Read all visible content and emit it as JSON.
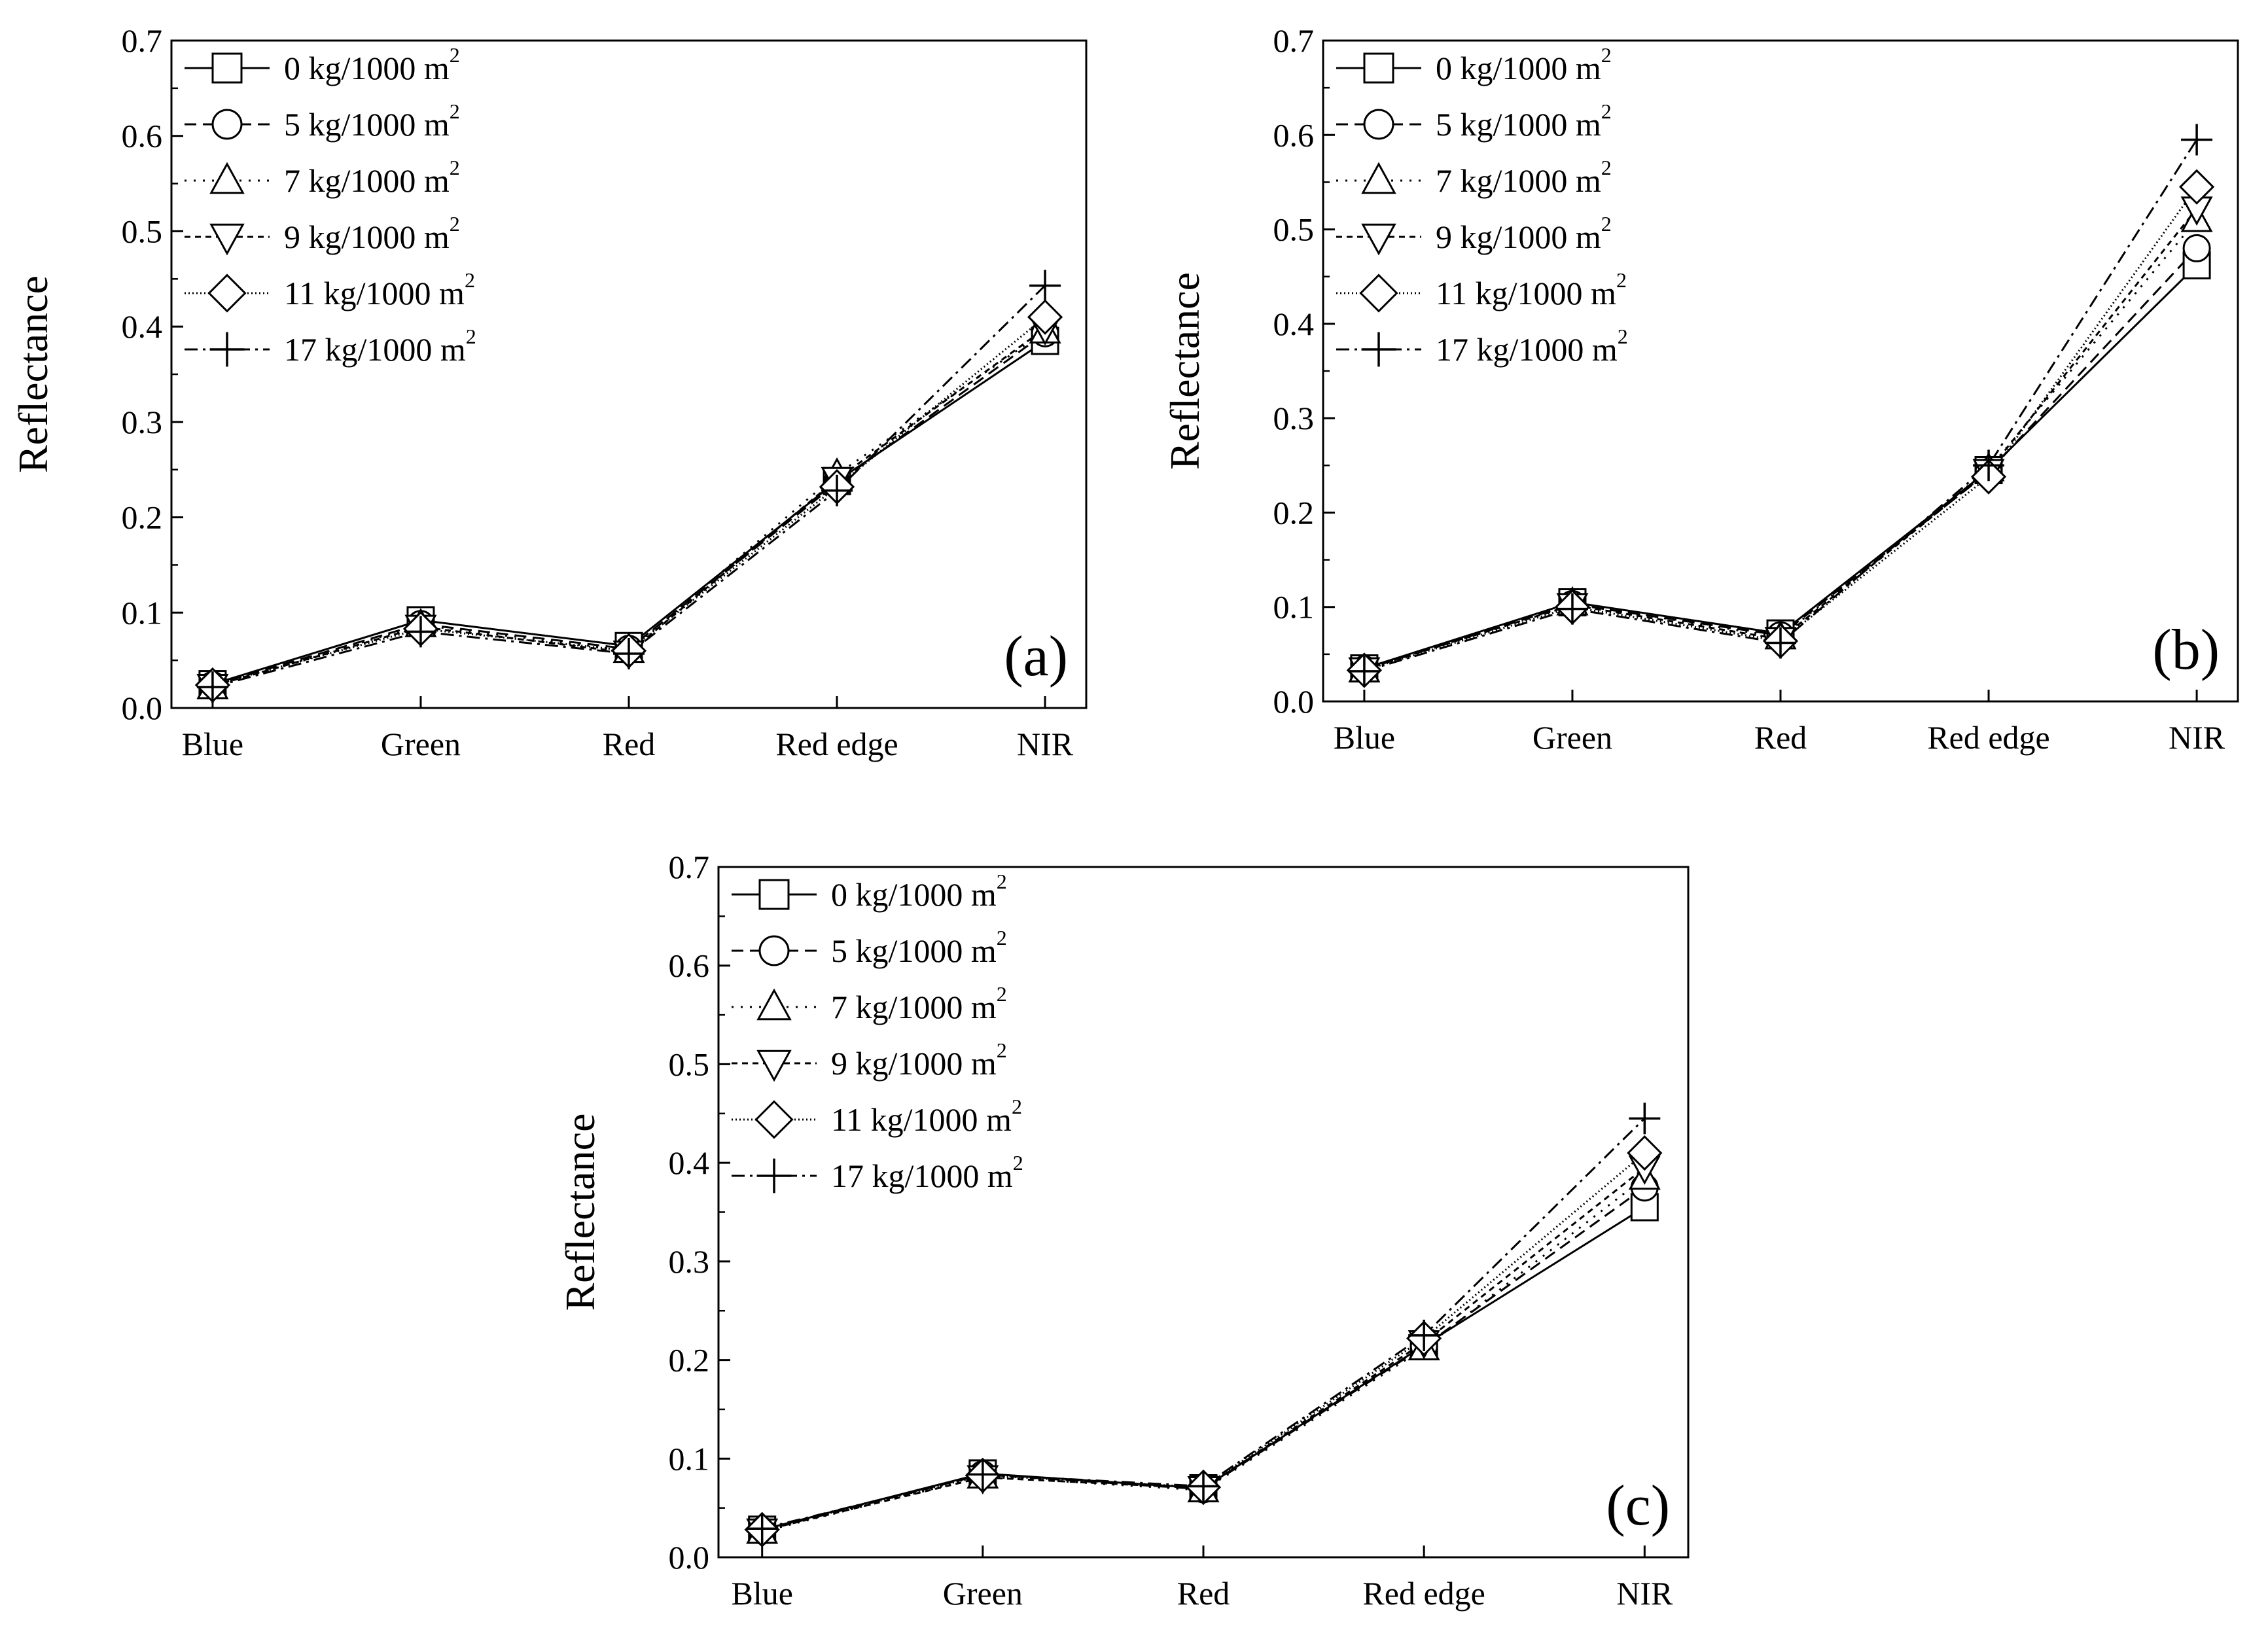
{
  "chart_data": [
    {
      "type": "line",
      "panel_label": "(a)",
      "ylabel": "Reflectance",
      "xlabel": "",
      "categories": [
        "Blue",
        "Green",
        "Red",
        "Red edge",
        "NIR"
      ],
      "ylim": [
        0.0,
        0.7
      ],
      "yticks": [
        "0.0",
        "0.1",
        "0.2",
        "0.3",
        "0.4",
        "0.5",
        "0.6",
        "0.7"
      ],
      "legend_position": "top-left",
      "series": [
        {
          "name": "0 kg/1000 m",
          "sup": "2",
          "marker": "square",
          "dash": "solid",
          "values": [
            0.025,
            0.092,
            0.065,
            0.238,
            0.385
          ]
        },
        {
          "name": "5 kg/1000 m",
          "sup": "2",
          "marker": "circle",
          "dash": "dashed",
          "values": [
            0.024,
            0.088,
            0.062,
            0.236,
            0.393
          ]
        },
        {
          "name": "7 kg/1000 m",
          "sup": "2",
          "marker": "triangle-up",
          "dash": "dotted",
          "values": [
            0.022,
            0.087,
            0.06,
            0.245,
            0.395
          ]
        },
        {
          "name": "9 kg/1000 m",
          "sup": "2",
          "marker": "triangle-down",
          "dash": "short-dash",
          "values": [
            0.023,
            0.085,
            0.058,
            0.24,
            0.398
          ]
        },
        {
          "name": "11 kg/1000 m",
          "sup": "2",
          "marker": "diamond",
          "dash": "fine-dot",
          "values": [
            0.024,
            0.083,
            0.06,
            0.232,
            0.41
          ]
        },
        {
          "name": "17 kg/1000 m",
          "sup": "2",
          "marker": "plus",
          "dash": "dash-dot",
          "values": [
            0.022,
            0.08,
            0.057,
            0.228,
            0.443
          ]
        }
      ]
    },
    {
      "type": "line",
      "panel_label": "(b)",
      "ylabel": "Reflectance",
      "xlabel": "",
      "categories": [
        "Blue",
        "Green",
        "Red",
        "Red edge",
        "NIR"
      ],
      "ylim": [
        0.0,
        0.7
      ],
      "yticks": [
        "0.0",
        "0.1",
        "0.2",
        "0.3",
        "0.4",
        "0.5",
        "0.6",
        "0.7"
      ],
      "legend_position": "top-left",
      "series": [
        {
          "name": "0 kg/1000 m",
          "sup": "2",
          "marker": "square",
          "dash": "solid",
          "values": [
            0.035,
            0.105,
            0.072,
            0.245,
            0.462
          ]
        },
        {
          "name": "5 kg/1000 m",
          "sup": "2",
          "marker": "circle",
          "dash": "dashed",
          "values": [
            0.034,
            0.103,
            0.07,
            0.243,
            0.48
          ]
        },
        {
          "name": "7 kg/1000 m",
          "sup": "2",
          "marker": "triangle-up",
          "dash": "dotted",
          "values": [
            0.033,
            0.104,
            0.068,
            0.246,
            0.51
          ]
        },
        {
          "name": "9 kg/1000 m",
          "sup": "2",
          "marker": "triangle-down",
          "dash": "short-dash",
          "values": [
            0.034,
            0.102,
            0.066,
            0.244,
            0.522
          ]
        },
        {
          "name": "11 kg/1000 m",
          "sup": "2",
          "marker": "diamond",
          "dash": "fine-dot",
          "values": [
            0.033,
            0.1,
            0.064,
            0.238,
            0.545
          ]
        },
        {
          "name": "17 kg/1000 m",
          "sup": "2",
          "marker": "plus",
          "dash": "dash-dot",
          "values": [
            0.032,
            0.098,
            0.062,
            0.25,
            0.595
          ]
        }
      ]
    },
    {
      "type": "line",
      "panel_label": "(c)",
      "ylabel": "Reflectance",
      "xlabel": "",
      "categories": [
        "Blue",
        "Green",
        "Red",
        "Red edge",
        "NIR"
      ],
      "ylim": [
        0.0,
        0.7
      ],
      "yticks": [
        "0.0",
        "0.1",
        "0.2",
        "0.3",
        "0.4",
        "0.5",
        "0.6",
        "0.7"
      ],
      "legend_position": "top-left",
      "series": [
        {
          "name": "0 kg/1000 m",
          "sup": "2",
          "marker": "square",
          "dash": "solid",
          "values": [
            0.028,
            0.085,
            0.07,
            0.215,
            0.355
          ]
        },
        {
          "name": "5 kg/1000 m",
          "sup": "2",
          "marker": "circle",
          "dash": "dashed",
          "values": [
            0.027,
            0.084,
            0.069,
            0.214,
            0.375
          ]
        },
        {
          "name": "7 kg/1000 m",
          "sup": "2",
          "marker": "triangle-up",
          "dash": "dotted",
          "values": [
            0.026,
            0.082,
            0.068,
            0.212,
            0.385
          ]
        },
        {
          "name": "9 kg/1000 m",
          "sup": "2",
          "marker": "triangle-down",
          "dash": "short-dash",
          "values": [
            0.027,
            0.081,
            0.07,
            0.218,
            0.395
          ]
        },
        {
          "name": "11 kg/1000 m",
          "sup": "2",
          "marker": "diamond",
          "dash": "fine-dot",
          "values": [
            0.028,
            0.083,
            0.071,
            0.222,
            0.41
          ]
        },
        {
          "name": "17 kg/1000 m",
          "sup": "2",
          "marker": "plus",
          "dash": "dash-dot",
          "values": [
            0.029,
            0.084,
            0.072,
            0.225,
            0.445
          ]
        }
      ]
    }
  ]
}
